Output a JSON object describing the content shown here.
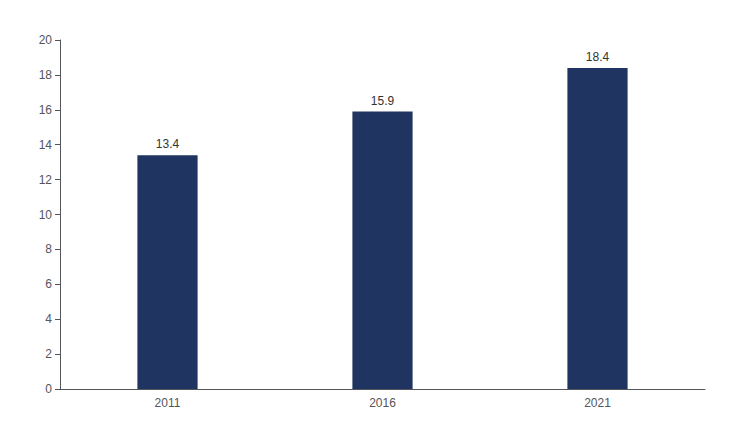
{
  "chart_data": {
    "type": "bar",
    "categories": [
      "2011",
      "2016",
      "2021"
    ],
    "values": [
      13.4,
      15.9,
      18.4
    ],
    "color": "#1f3461",
    "ylim": [
      0,
      20
    ],
    "yticks": [
      0,
      2,
      4,
      6,
      8,
      10,
      12,
      14,
      16,
      18,
      20
    ],
    "grid": false,
    "data_labels": true
  }
}
